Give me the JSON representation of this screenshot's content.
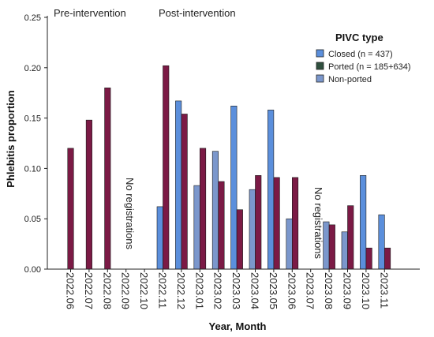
{
  "chart_data": {
    "type": "bar",
    "xlabel": "Year, Month",
    "ylabel": "Phlebitis proportion",
    "ylim": [
      0,
      0.25
    ],
    "yticks": [
      "0.00",
      "0.05",
      "0.10",
      "0.15",
      "0.20",
      "0.25"
    ],
    "ytick_values": [
      0,
      0.05,
      0.1,
      0.15,
      0.2,
      0.25
    ],
    "grid": false,
    "legend_position": "top-right",
    "categories": [
      "2022.06",
      "2022.07",
      "2022.08",
      "2022.09",
      "2022.10",
      "2022.11",
      "2022.12",
      "2023.01",
      "2023.02",
      "2023.03",
      "2023.04",
      "2023.05",
      "2023.06",
      "2023.07",
      "2023.08",
      "2023.09",
      "2023.10",
      "2023.11"
    ],
    "legend": {
      "title": "PIVC type",
      "entries": [
        "Closed (n = 437)",
        "Ported (n = 185+634)",
        "Non-ported"
      ]
    },
    "colors": {
      "closed": "#5b8fdc",
      "ported": "#7b1a45",
      "ported_legend": "#2f4f3e",
      "non_ported": "#7b97cc"
    },
    "series": [
      {
        "name": "Closed (n = 437)",
        "values": [
          null,
          null,
          null,
          null,
          null,
          0.062,
          0.167,
          null,
          null,
          0.162,
          null,
          0.158,
          null,
          null,
          null,
          null,
          0.093,
          0.054
        ]
      },
      {
        "name": "Non-ported",
        "values": [
          null,
          null,
          null,
          null,
          null,
          null,
          null,
          0.083,
          0.117,
          null,
          0.079,
          null,
          0.05,
          null,
          0.047,
          0.037,
          null,
          null
        ]
      },
      {
        "name": "Ported (n = 185+634)",
        "values": [
          0.12,
          0.148,
          0.18,
          null,
          null,
          0.202,
          0.154,
          0.12,
          0.087,
          0.059,
          0.093,
          0.091,
          0.091,
          null,
          0.044,
          0.063,
          0.021,
          0.021
        ]
      }
    ],
    "annotations": {
      "pre": "Pre-intervention",
      "post": "Post-intervention",
      "no_reg_1": "No registrations",
      "no_reg_2": "No registrations"
    }
  }
}
